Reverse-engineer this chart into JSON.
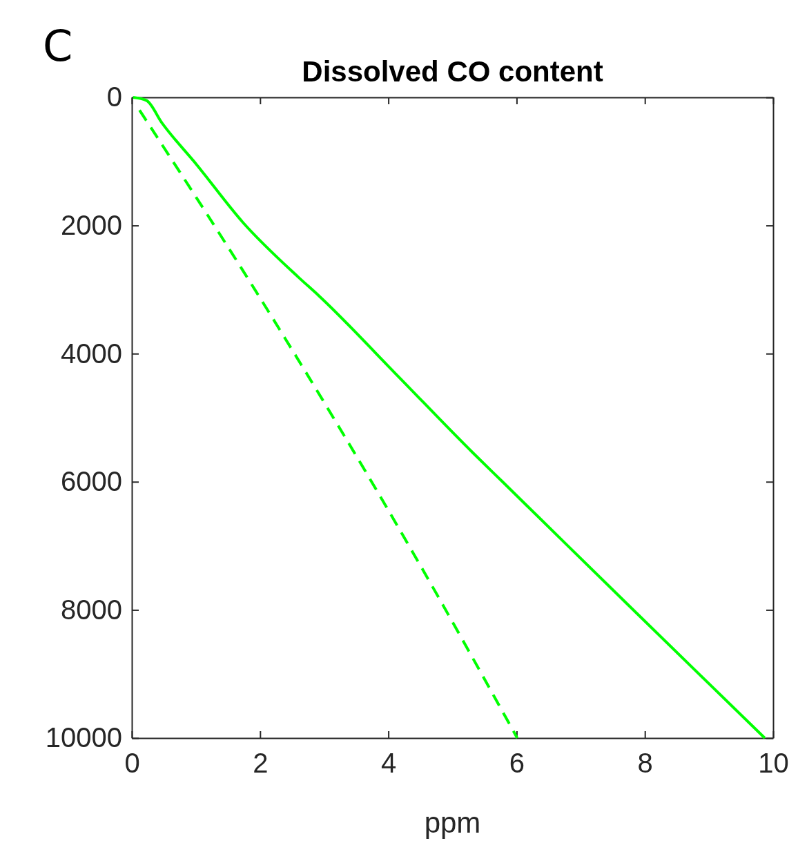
{
  "chart_data": {
    "type": "line",
    "title": "Dissolved CO content",
    "xlabel": "ppm",
    "annotations": [
      "C"
    ],
    "xlim": [
      0,
      10
    ],
    "xticks": [
      0,
      2,
      4,
      6,
      8,
      10
    ],
    "ylim": [
      10000,
      0
    ],
    "yticks": [
      0,
      2000,
      4000,
      6000,
      8000,
      10000
    ],
    "grid": false,
    "series": [
      {
        "color": "#00ff00",
        "line_style": "solid",
        "x": [
          0.02,
          0.23,
          0.47,
          1.01,
          1.73,
          2.59,
          2.92,
          4.1,
          5.32,
          5.78,
          7.87,
          9.87
        ],
        "values": [
          0,
          50,
          400,
          1050,
          1950,
          2800,
          3100,
          4300,
          5550,
          6000,
          8050,
          10000
        ]
      },
      {
        "color": "#00ff00",
        "line_style": "dashed",
        "x": [
          0.12,
          1.98,
          4.38,
          6.01
        ],
        "values": [
          200,
          3100,
          7100,
          10000
        ]
      }
    ]
  }
}
